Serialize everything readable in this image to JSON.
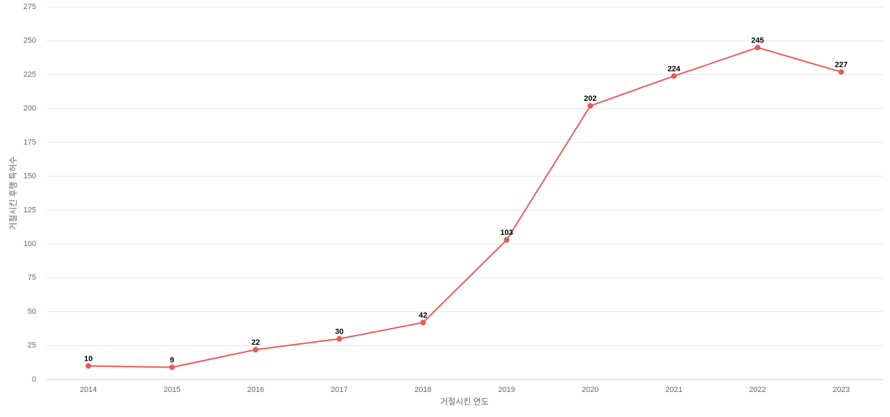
{
  "chart_data": {
    "type": "line",
    "y_label": "거절시킨 후행 특허수",
    "x_label": "거절시킨 연도",
    "categories": [
      "2014",
      "2015",
      "2016",
      "2017",
      "2018",
      "2019",
      "2020",
      "2021",
      "2022",
      "2023"
    ],
    "values": [
      10,
      9,
      22,
      30,
      42,
      103,
      202,
      224,
      245,
      227
    ],
    "color": "#eb5757",
    "ylim": [
      0,
      275
    ],
    "yticks": [
      0,
      25,
      50,
      75,
      100,
      125,
      150,
      175,
      200,
      225,
      250,
      275
    ],
    "grid": true,
    "show_value_labels": true
  }
}
